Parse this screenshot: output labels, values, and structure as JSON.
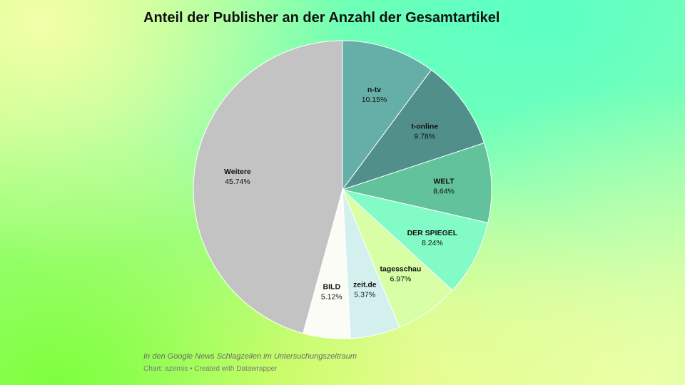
{
  "title": "Anteil der Publisher an der Anzahl der Gesamtartikel",
  "footer": {
    "note": "In den Google News Schlagzeilen im Untersuchungszeitraum",
    "credit": "Chart: azernis • Created with Datawrapper"
  },
  "chart_data": {
    "type": "pie",
    "title": "Anteil der Publisher an der Anzahl der Gesamtartikel",
    "slices": [
      {
        "label": "n-tv",
        "value": 10.15,
        "display": "10.15%",
        "color": "#66aea8"
      },
      {
        "label": "t-online",
        "value": 9.78,
        "display": "9.78%",
        "color": "#508f8a"
      },
      {
        "label": "WELT",
        "value": 8.64,
        "display": "8.64%",
        "color": "#62c29c"
      },
      {
        "label": "DER SPIEGEL",
        "value": 8.24,
        "display": "8.24%",
        "color": "#82fbc7"
      },
      {
        "label": "tagesschau",
        "value": 6.97,
        "display": "6.97%",
        "color": "#d8ffa6"
      },
      {
        "label": "zeit.de",
        "value": 5.37,
        "display": "5.37%",
        "color": "#d3f0ef"
      },
      {
        "label": "BILD",
        "value": 5.12,
        "display": "5.12%",
        "color": "#fcfcf6"
      },
      {
        "label": "Weitere",
        "value": 45.74,
        "display": "45.74%",
        "color": "#c3c3c3"
      }
    ]
  }
}
